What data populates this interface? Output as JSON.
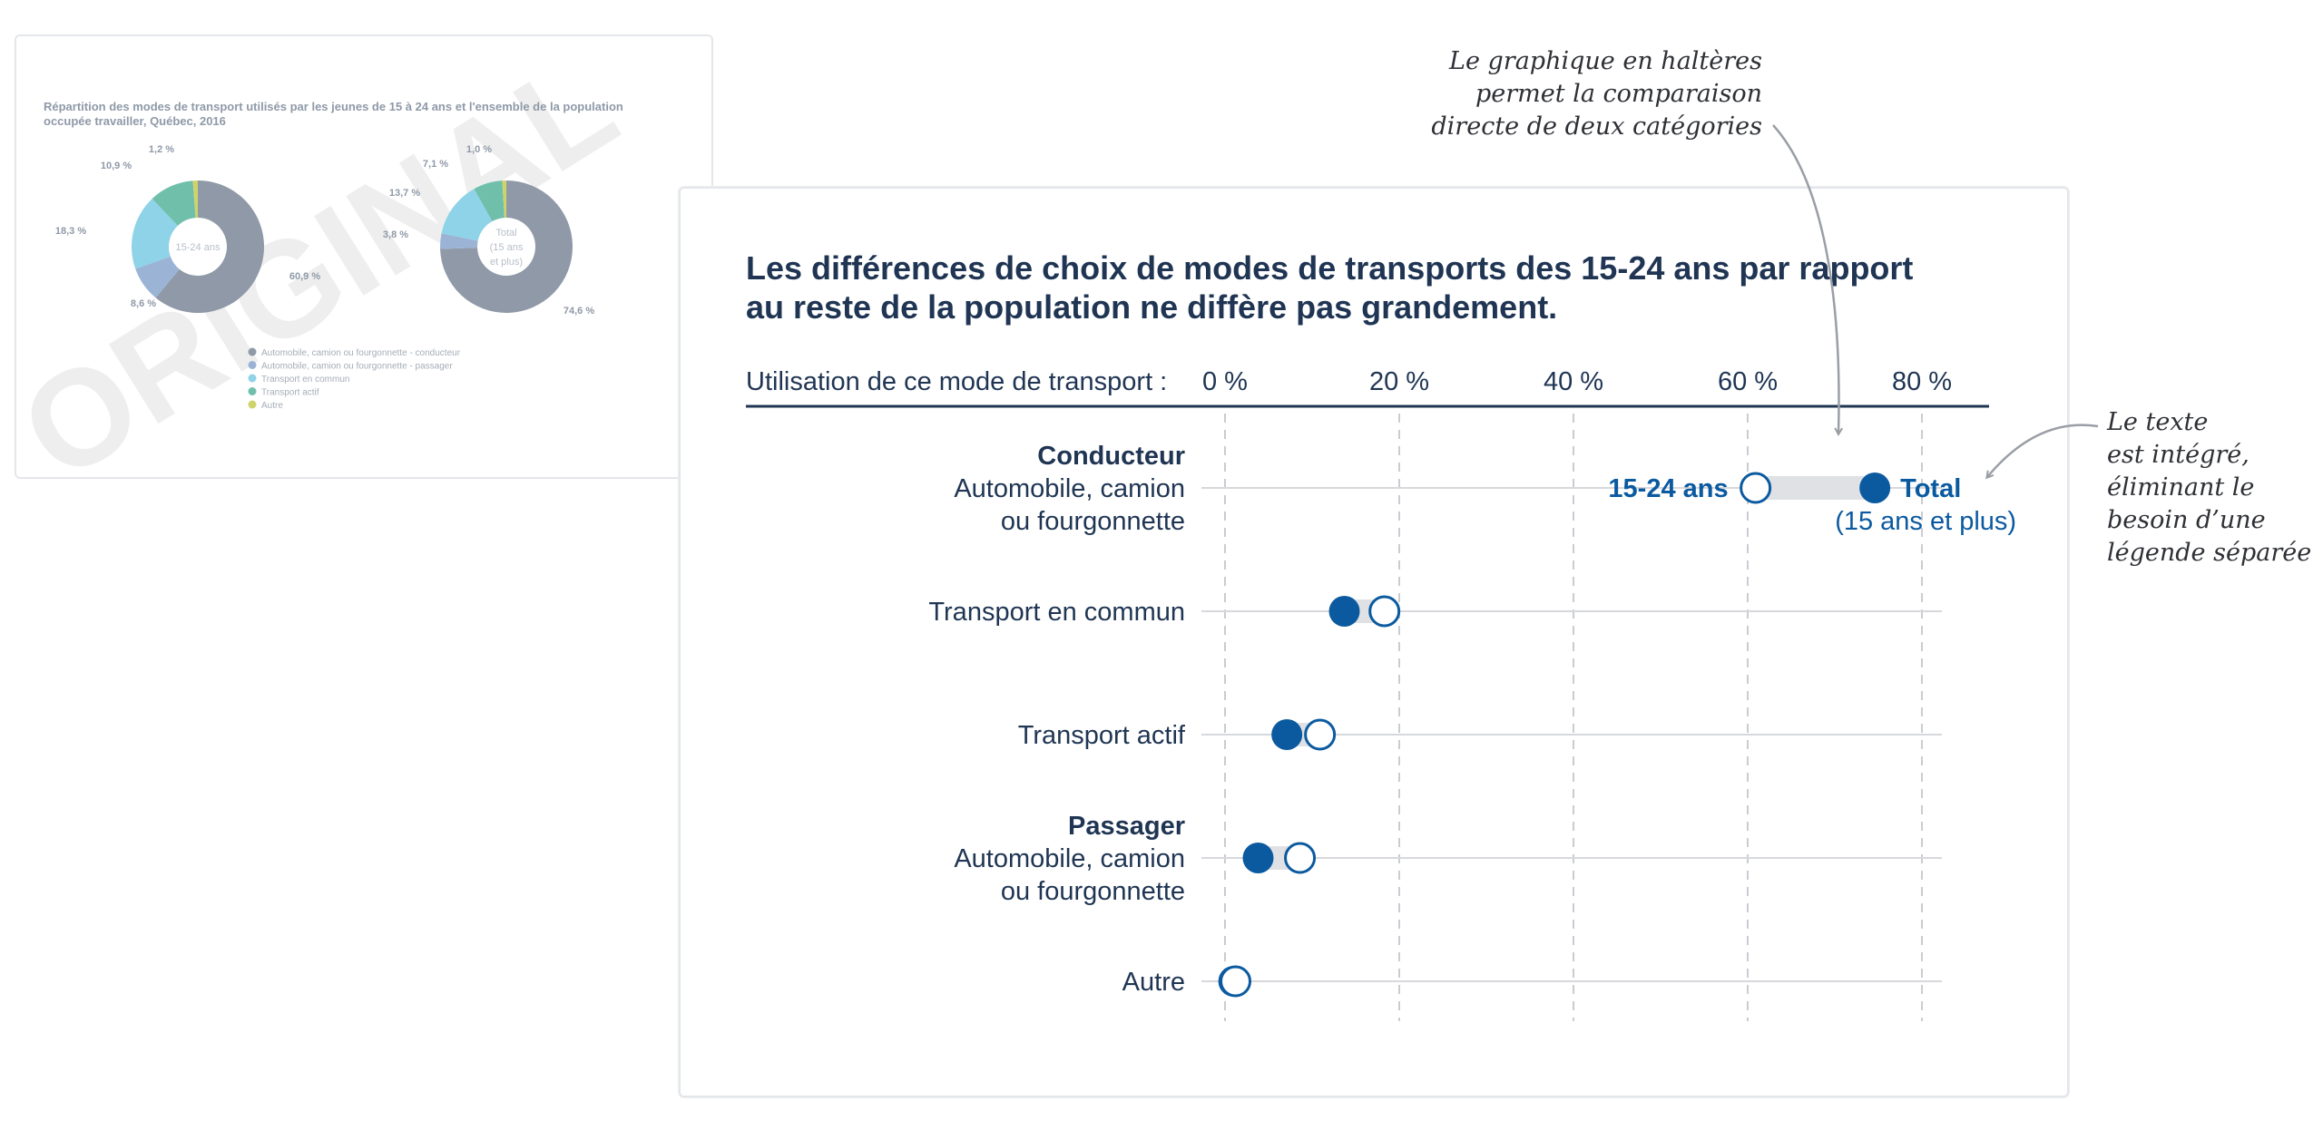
{
  "original": {
    "watermark": "ORIGINAL",
    "title": "Répartition des modes de transport utilisés par les jeunes de 15 à 24 ans et l'ensemble de la population occupée travailler, Québec, 2016",
    "donuts": [
      {
        "center_label": [
          "15-24 ans"
        ],
        "slices": [
          {
            "value": 60.9,
            "label": "60,9 %",
            "color": "#8f99a8"
          },
          {
            "value": 8.6,
            "label": "8,6 %",
            "color": "#9bb4d6"
          },
          {
            "value": 18.3,
            "label": "18,3 %",
            "color": "#8ed3e8"
          },
          {
            "value": 10.9,
            "label": "10,9 %",
            "color": "#6fbfab"
          },
          {
            "value": 1.2,
            "label": "1,2 %",
            "color": "#cfd46a"
          }
        ]
      },
      {
        "center_label": [
          "Total",
          "(15 ans",
          "et plus)"
        ],
        "slices": [
          {
            "value": 74.6,
            "label": "74,6 %",
            "color": "#8f99a8"
          },
          {
            "value": 3.8,
            "label": "3,8 %",
            "color": "#9bb4d6"
          },
          {
            "value": 13.7,
            "label": "13,7 %",
            "color": "#8ed3e8"
          },
          {
            "value": 7.1,
            "label": "7,1 %",
            "color": "#6fbfab"
          },
          {
            "value": 1.0,
            "label": "1,0 %",
            "color": "#cfd46a"
          }
        ]
      }
    ],
    "legend": [
      {
        "label": "Automobile, camion ou fourgonnette - conducteur",
        "color": "#8f99a8"
      },
      {
        "label": "Automobile, camion ou fourgonnette - passager",
        "color": "#9bb4d6"
      },
      {
        "label": "Transport en commun",
        "color": "#8ed3e8"
      },
      {
        "label": "Transport actif",
        "color": "#6fbfab"
      },
      {
        "label": "Autre",
        "color": "#cfd46a"
      }
    ]
  },
  "chart_data": {
    "type": "dumbbell",
    "title": "Les différences de choix de modes de transports des 15-24 ans par rapport au reste de la population ne diffère pas grandement.",
    "axis_label": "Utilisation de ce mode de transport :",
    "ticks": [
      {
        "value": 0,
        "label": "0 %"
      },
      {
        "value": 20,
        "label": "20 %"
      },
      {
        "value": 40,
        "label": "40 %"
      },
      {
        "value": 60,
        "label": "60 %"
      },
      {
        "value": 80,
        "label": "80 %"
      }
    ],
    "xlim": [
      0,
      82
    ],
    "grid": "dashed-vertical",
    "series": [
      {
        "name": "15-24 ans",
        "marker": "open-circle",
        "values": [
          60.9,
          18.3,
          10.9,
          8.6,
          1.2
        ]
      },
      {
        "name": "Total",
        "sub_label": "(15 ans et plus)",
        "marker": "filled-circle",
        "values": [
          74.6,
          13.7,
          7.1,
          3.8,
          1.0
        ]
      }
    ],
    "categories": [
      {
        "bold": "Conducteur",
        "lines": [
          "Automobile, camion",
          "ou fourgonnette"
        ]
      },
      {
        "bold": "",
        "lines": [
          "Transport en commun"
        ]
      },
      {
        "bold": "",
        "lines": [
          "Transport actif"
        ]
      },
      {
        "bold": "Passager",
        "lines": [
          "Automobile, camion",
          "ou fourgonnette"
        ]
      },
      {
        "bold": "",
        "lines": [
          "Autre"
        ]
      }
    ],
    "colors": {
      "accent": "#0b5aa0",
      "axis": "#1f3553",
      "track": "#dfe1e4",
      "grid": "#c9ccd1"
    }
  },
  "annotations": {
    "top": "Le graphique en haltères\npermet la comparaison\ndirecte de deux catégories",
    "side": "Le texte\nest intégré,\néliminant le\nbesoin d’une\nlégende séparée"
  }
}
